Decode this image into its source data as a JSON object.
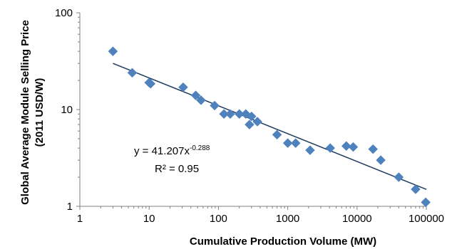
{
  "chart_data": {
    "type": "scatter",
    "title": "",
    "xlabel": "Cumulative Production Volume (MW)",
    "ylabel_line1": "Global Average Module Selling Price",
    "ylabel_line2": "(2011 USD/W)",
    "xscale": "log",
    "yscale": "log",
    "xlim": [
      1,
      100000
    ],
    "ylim": [
      1,
      100
    ],
    "x_ticks": [
      "1",
      "10",
      "100",
      "1000",
      "10000",
      "100000"
    ],
    "y_ticks": [
      "1",
      "10",
      "100"
    ],
    "grid": false,
    "legend": "none",
    "marker": "diamond",
    "colors": {
      "marker": "#4f81bd",
      "trendline": "#1f3b5f"
    },
    "series": [
      {
        "x": [
          3,
          5.7,
          10,
          10.5,
          31,
          47,
          56,
          88,
          120,
          148,
          200,
          248,
          280,
          300,
          365,
          700,
          1000,
          1300,
          2100,
          4100,
          7000,
          8800,
          17000,
          22000,
          40000,
          70000,
          98000
        ],
        "y": [
          40,
          24,
          19,
          18.5,
          17,
          14,
          12.5,
          11,
          9,
          9,
          9,
          9,
          7,
          8.5,
          7.5,
          5.5,
          4.5,
          4.5,
          3.8,
          4,
          4.2,
          4.1,
          3.9,
          3,
          2,
          1.5,
          1.1
        ]
      }
    ],
    "trendline": {
      "type": "power",
      "a": 41.207,
      "b": -0.288,
      "x_range": [
        3,
        100000
      ],
      "equation_base": "y = 41.207x",
      "equation_exp": "-0.288",
      "r2_text": "R² = 0.95"
    }
  }
}
